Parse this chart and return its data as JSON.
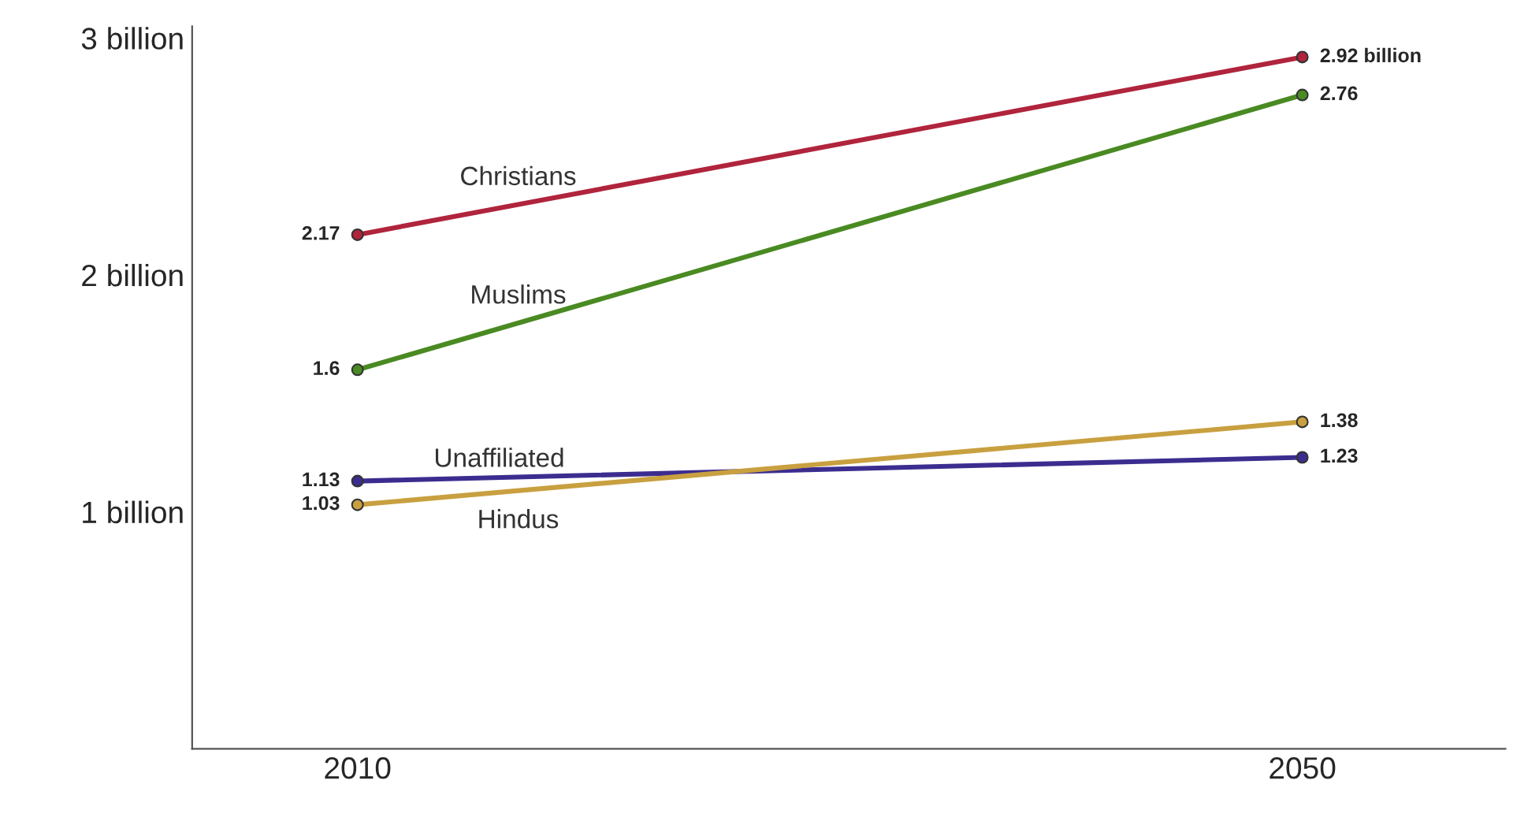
{
  "chart_data": {
    "type": "line",
    "x": [
      2010,
      2050
    ],
    "series": [
      {
        "name": "Christians",
        "color": "#b0243c",
        "values": [
          2.17,
          2.92
        ],
        "value_labels": [
          "2.17",
          "2.92 billion"
        ]
      },
      {
        "name": "Muslims",
        "color": "#4a8a22",
        "values": [
          1.6,
          2.76
        ],
        "value_labels": [
          "1.6",
          "2.76"
        ]
      },
      {
        "name": "Unaffiliated",
        "color": "#3b2d8f",
        "values": [
          1.13,
          1.23
        ],
        "value_labels": [
          "1.13",
          "1.23"
        ]
      },
      {
        "name": "Hindus",
        "color": "#c9a040",
        "values": [
          1.03,
          1.38
        ],
        "value_labels": [
          "1.03",
          "1.38"
        ]
      }
    ],
    "xlim": [
      2003,
      2058.6
    ],
    "xticks": [
      2010,
      2050
    ],
    "ylim": [
      0,
      3.05
    ],
    "yticks": [
      {
        "value": 1,
        "label": "1 billion"
      },
      {
        "value": 2,
        "label": "2 billion"
      },
      {
        "value": 3,
        "label": "3 billion"
      }
    ],
    "grid": false,
    "legend": false,
    "marker": "circle",
    "line_style": "solid"
  }
}
